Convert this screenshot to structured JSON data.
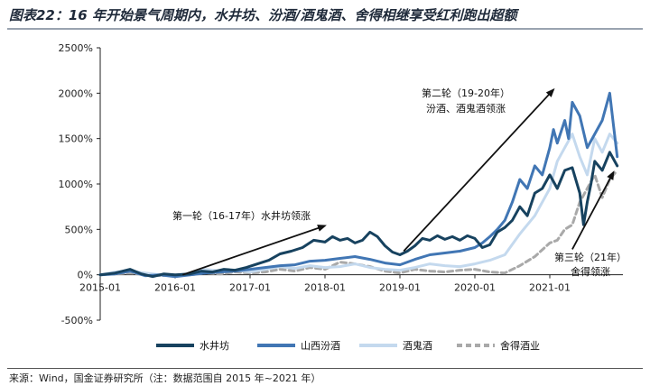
{
  "title": "图表22：16 年开始景气周期内，水井坊、汾酒/酒鬼酒、舍得相继享受红利跑出超额",
  "source": "来源：Wind，国金证券研究所（注：数据范围自 2015 年~2021 年）",
  "chart_data": {
    "type": "line",
    "title": "图表22：16 年开始景气周期内，水井坊、汾酒/酒鬼酒、舍得相继享受红利跑出超额",
    "xlabel": "",
    "ylabel": "",
    "x_ticks": [
      "2015-01",
      "2016-01",
      "2017-01",
      "2018-01",
      "2019-01",
      "2020-01",
      "2021-01"
    ],
    "y_ticks": [
      "2500%",
      "2000%",
      "1500%",
      "1000%",
      "500%",
      "0%",
      "-500%"
    ],
    "ylim": [
      -500,
      2500
    ],
    "xlim": [
      2015.0,
      2021.95
    ],
    "grid": false,
    "legend_position": "bottom",
    "series": [
      {
        "name": "水井坊",
        "color": "#17425f",
        "width": 3,
        "dash": "",
        "points": [
          [
            2015.0,
            0
          ],
          [
            2015.2,
            20
          ],
          [
            2015.4,
            60
          ],
          [
            2015.55,
            10
          ],
          [
            2015.7,
            -20
          ],
          [
            2015.85,
            10
          ],
          [
            2016.0,
            0
          ],
          [
            2016.2,
            10
          ],
          [
            2016.35,
            40
          ],
          [
            2016.5,
            30
          ],
          [
            2016.65,
            60
          ],
          [
            2016.8,
            50
          ],
          [
            2016.95,
            80
          ],
          [
            2017.1,
            120
          ],
          [
            2017.25,
            160
          ],
          [
            2017.4,
            230
          ],
          [
            2017.55,
            260
          ],
          [
            2017.7,
            300
          ],
          [
            2017.85,
            380
          ],
          [
            2018.0,
            360
          ],
          [
            2018.1,
            420
          ],
          [
            2018.2,
            380
          ],
          [
            2018.3,
            400
          ],
          [
            2018.4,
            350
          ],
          [
            2018.5,
            380
          ],
          [
            2018.6,
            470
          ],
          [
            2018.7,
            420
          ],
          [
            2018.8,
            320
          ],
          [
            2018.9,
            250
          ],
          [
            2019.0,
            220
          ],
          [
            2019.1,
            260
          ],
          [
            2019.2,
            320
          ],
          [
            2019.3,
            400
          ],
          [
            2019.4,
            380
          ],
          [
            2019.5,
            430
          ],
          [
            2019.6,
            390
          ],
          [
            2019.7,
            420
          ],
          [
            2019.8,
            380
          ],
          [
            2019.9,
            430
          ],
          [
            2020.0,
            400
          ],
          [
            2020.1,
            300
          ],
          [
            2020.2,
            330
          ],
          [
            2020.3,
            470
          ],
          [
            2020.4,
            520
          ],
          [
            2020.5,
            600
          ],
          [
            2020.6,
            750
          ],
          [
            2020.7,
            650
          ],
          [
            2020.8,
            900
          ],
          [
            2020.9,
            950
          ],
          [
            2021.0,
            1100
          ],
          [
            2021.1,
            950
          ],
          [
            2021.2,
            1150
          ],
          [
            2021.3,
            1180
          ],
          [
            2021.4,
            900
          ],
          [
            2021.45,
            550
          ],
          [
            2021.5,
            800
          ],
          [
            2021.55,
            1000
          ],
          [
            2021.6,
            1250
          ],
          [
            2021.7,
            1150
          ],
          [
            2021.8,
            1350
          ],
          [
            2021.9,
            1200
          ]
        ]
      },
      {
        "name": "山西汾酒",
        "color": "#4176b4",
        "width": 3,
        "dash": "",
        "points": [
          [
            2015.0,
            0
          ],
          [
            2015.2,
            10
          ],
          [
            2015.4,
            40
          ],
          [
            2015.6,
            -10
          ],
          [
            2015.8,
            0
          ],
          [
            2016.0,
            -20
          ],
          [
            2016.2,
            0
          ],
          [
            2016.4,
            20
          ],
          [
            2016.6,
            30
          ],
          [
            2016.8,
            40
          ],
          [
            2017.0,
            60
          ],
          [
            2017.2,
            80
          ],
          [
            2017.4,
            100
          ],
          [
            2017.6,
            110
          ],
          [
            2017.8,
            150
          ],
          [
            2018.0,
            160
          ],
          [
            2018.2,
            180
          ],
          [
            2018.4,
            200
          ],
          [
            2018.6,
            170
          ],
          [
            2018.8,
            130
          ],
          [
            2019.0,
            110
          ],
          [
            2019.2,
            170
          ],
          [
            2019.4,
            220
          ],
          [
            2019.6,
            240
          ],
          [
            2019.8,
            260
          ],
          [
            2020.0,
            300
          ],
          [
            2020.1,
            350
          ],
          [
            2020.2,
            420
          ],
          [
            2020.3,
            500
          ],
          [
            2020.4,
            600
          ],
          [
            2020.5,
            800
          ],
          [
            2020.6,
            1050
          ],
          [
            2020.7,
            950
          ],
          [
            2020.8,
            1200
          ],
          [
            2020.9,
            1100
          ],
          [
            2021.0,
            1400
          ],
          [
            2021.05,
            1600
          ],
          [
            2021.1,
            1450
          ],
          [
            2021.2,
            1700
          ],
          [
            2021.25,
            1500
          ],
          [
            2021.3,
            1900
          ],
          [
            2021.4,
            1750
          ],
          [
            2021.5,
            1400
          ],
          [
            2021.6,
            1550
          ],
          [
            2021.7,
            1700
          ],
          [
            2021.8,
            2000
          ],
          [
            2021.85,
            1650
          ],
          [
            2021.9,
            1300
          ]
        ]
      },
      {
        "name": "酒鬼酒",
        "color": "#c4d9ee",
        "width": 3,
        "dash": "",
        "points": [
          [
            2015.0,
            0
          ],
          [
            2015.2,
            30
          ],
          [
            2015.4,
            40
          ],
          [
            2015.6,
            20
          ],
          [
            2015.8,
            0
          ],
          [
            2016.0,
            -10
          ],
          [
            2016.2,
            20
          ],
          [
            2016.4,
            60
          ],
          [
            2016.6,
            40
          ],
          [
            2016.8,
            50
          ],
          [
            2017.0,
            30
          ],
          [
            2017.2,
            60
          ],
          [
            2017.4,
            90
          ],
          [
            2017.6,
            70
          ],
          [
            2017.8,
            100
          ],
          [
            2018.0,
            80
          ],
          [
            2018.2,
            90
          ],
          [
            2018.4,
            120
          ],
          [
            2018.6,
            80
          ],
          [
            2018.8,
            60
          ],
          [
            2019.0,
            50
          ],
          [
            2019.2,
            80
          ],
          [
            2019.4,
            120
          ],
          [
            2019.6,
            100
          ],
          [
            2019.8,
            90
          ],
          [
            2020.0,
            120
          ],
          [
            2020.2,
            160
          ],
          [
            2020.4,
            220
          ],
          [
            2020.6,
            450
          ],
          [
            2020.8,
            650
          ],
          [
            2021.0,
            950
          ],
          [
            2021.1,
            1250
          ],
          [
            2021.2,
            1400
          ],
          [
            2021.3,
            1550
          ],
          [
            2021.4,
            1300
          ],
          [
            2021.5,
            1100
          ],
          [
            2021.6,
            1500
          ],
          [
            2021.7,
            1350
          ],
          [
            2021.8,
            1550
          ],
          [
            2021.9,
            1450
          ]
        ]
      },
      {
        "name": "舍得酒业",
        "color": "#a9a9a9",
        "width": 3,
        "dash": "6,4",
        "points": [
          [
            2015.0,
            0
          ],
          [
            2015.2,
            10
          ],
          [
            2015.4,
            20
          ],
          [
            2015.6,
            0
          ],
          [
            2015.8,
            -10
          ],
          [
            2016.0,
            -5
          ],
          [
            2016.2,
            0
          ],
          [
            2016.4,
            20
          ],
          [
            2016.6,
            10
          ],
          [
            2016.8,
            30
          ],
          [
            2017.0,
            20
          ],
          [
            2017.2,
            30
          ],
          [
            2017.4,
            60
          ],
          [
            2017.6,
            40
          ],
          [
            2017.8,
            80
          ],
          [
            2018.0,
            60
          ],
          [
            2018.2,
            140
          ],
          [
            2018.4,
            120
          ],
          [
            2018.6,
            90
          ],
          [
            2018.8,
            40
          ],
          [
            2019.0,
            20
          ],
          [
            2019.2,
            60
          ],
          [
            2019.4,
            40
          ],
          [
            2019.6,
            30
          ],
          [
            2019.8,
            50
          ],
          [
            2020.0,
            60
          ],
          [
            2020.2,
            30
          ],
          [
            2020.4,
            20
          ],
          [
            2020.6,
            100
          ],
          [
            2020.8,
            200
          ],
          [
            2021.0,
            350
          ],
          [
            2021.1,
            380
          ],
          [
            2021.2,
            500
          ],
          [
            2021.3,
            550
          ],
          [
            2021.4,
            800
          ],
          [
            2021.5,
            950
          ],
          [
            2021.6,
            1100
          ],
          [
            2021.7,
            850
          ],
          [
            2021.8,
            1050
          ],
          [
            2021.9,
            1150
          ]
        ]
      }
    ],
    "annotations": [
      {
        "id": "round1",
        "lines": [
          "第一轮（16-17年）水井坊领涨"
        ],
        "from": [
          2016.1,
          0
        ],
        "to": [
          2018.0,
          540
        ]
      },
      {
        "id": "round2",
        "lines": [
          "第二轮（19-20年）",
          "汾酒、酒鬼酒领涨"
        ],
        "from": [
          2019.05,
          260
        ],
        "to": [
          2021.05,
          2040
        ]
      },
      {
        "id": "round3",
        "lines": [
          "第三轮（21年）",
          "舍得领涨"
        ],
        "from": [
          2021.3,
          280
        ],
        "to": [
          2021.85,
          1130
        ]
      }
    ]
  }
}
